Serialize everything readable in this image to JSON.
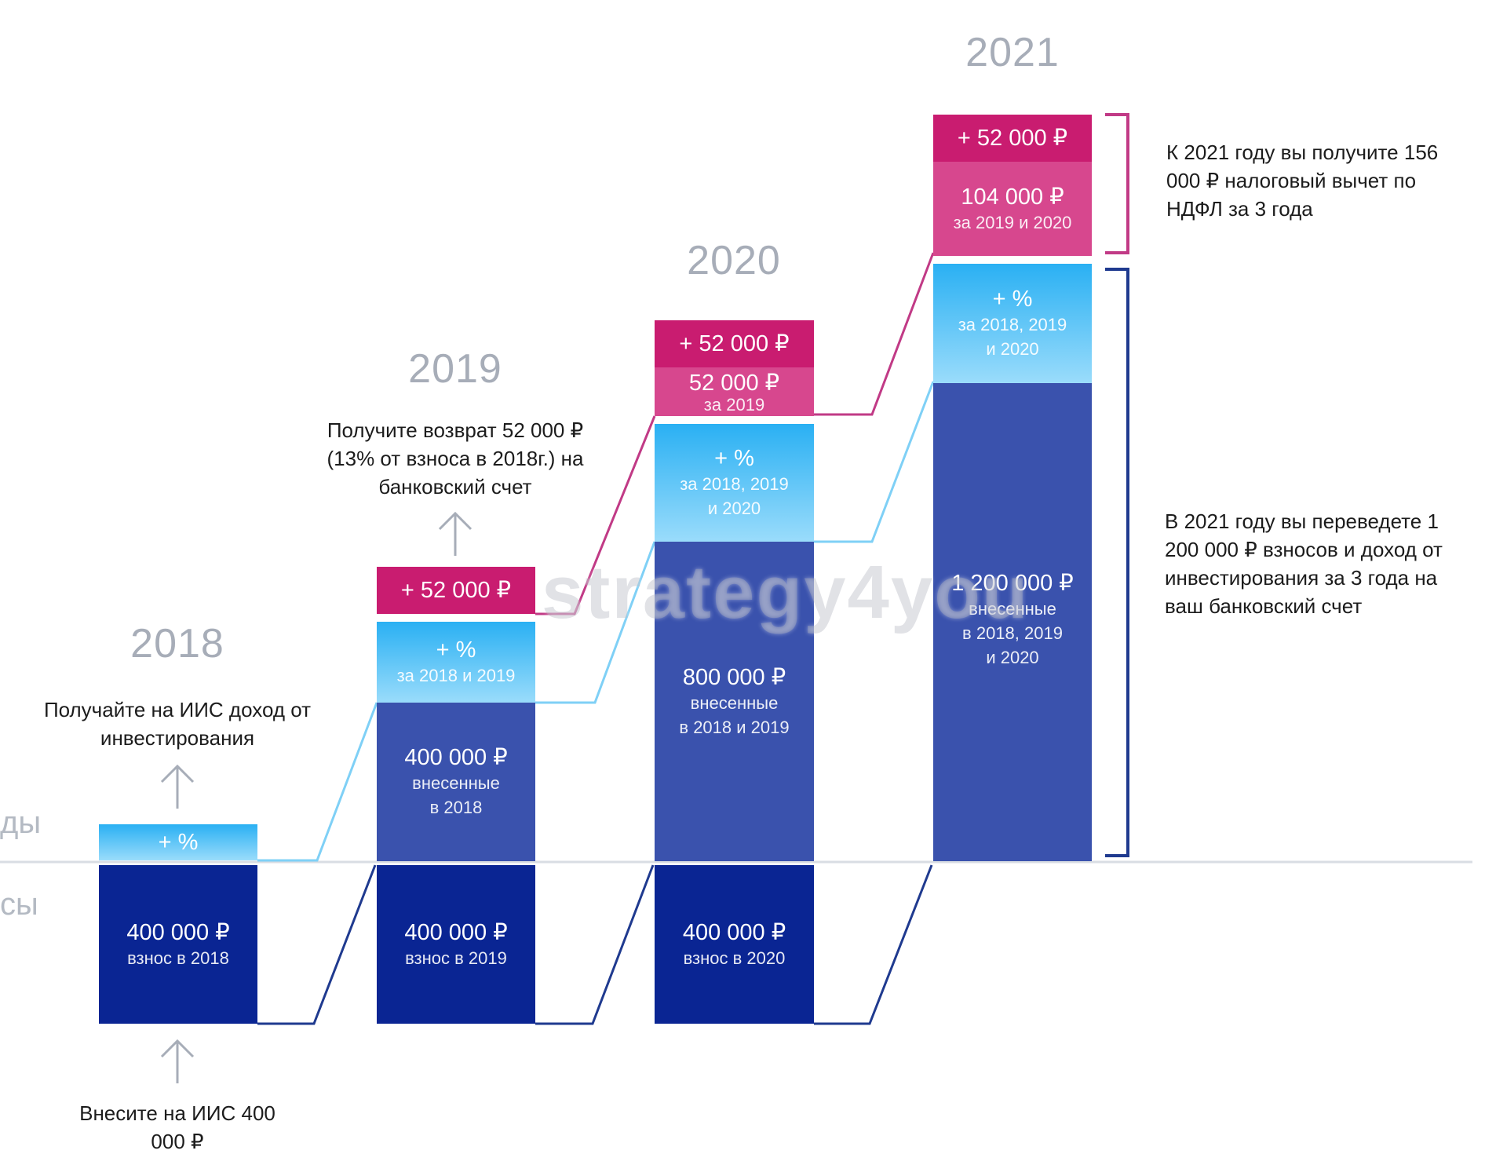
{
  "years": {
    "y2018": "2018",
    "y2019": "2019",
    "y2020": "2020",
    "y2021": "2021"
  },
  "side_labels": {
    "incomes": "ды",
    "contributions": "сы"
  },
  "notes": {
    "income_2018": "Получайте на ИИС доход от инвестирования",
    "refund_2019": "Получите возврат 52 000 ₽ (13% от взноса в 2018г.) на банковский счет",
    "deposit_2018": "Внесите на ИИС 400 000 ₽",
    "tax_total_2021": "К 2021 году вы получите 156 000 ₽ налоговый вычет по НДФЛ за 3 года",
    "transfer_2021": "В 2021 году вы переведете 1 200 000 ₽ взносов и доход от инвестирования за 3 года на ваш банковский счет"
  },
  "blocks": {
    "c2018": {
      "deposit_amount": "400 000 ₽",
      "deposit_label": "взнос в 2018",
      "pct": "+ %"
    },
    "c2019": {
      "deposit_amount": "400 000 ₽",
      "deposit_label": "взнос в 2019",
      "accum_amount": "400 000 ₽",
      "accum_label1": "внесенные",
      "accum_label2": "в 2018",
      "pct": "+ %",
      "pct_label": "за 2018 и 2019",
      "tax_new": "+ 52 000 ₽"
    },
    "c2020": {
      "deposit_amount": "400 000 ₽",
      "deposit_label": "взнос в 2020",
      "accum_amount": "800 000 ₽",
      "accum_label1": "внесенные",
      "accum_label2": "в 2018 и 2019",
      "pct": "+ %",
      "pct_label1": "за 2018, 2019",
      "pct_label2": "и 2020",
      "tax_prev_amount": "52 000 ₽",
      "tax_prev_label": "за 2019",
      "tax_new": "+ 52 000 ₽"
    },
    "c2021": {
      "accum_amount": "1 200 000 ₽",
      "accum_label1": "внесенные",
      "accum_label2": "в 2018, 2019",
      "accum_label3": "и 2020",
      "pct": "+ %",
      "pct_label1": "за 2018, 2019",
      "pct_label2": "и 2020",
      "tax_prev_amount": "104 000 ₽",
      "tax_prev_label": "за 2019 и 2020",
      "tax_new": "+ 52 000 ₽"
    }
  },
  "watermark": "strategy4you",
  "colors": {
    "deposit": "#0a2593",
    "accumulated": "#3a52ad",
    "interest_top": "#2ab0f3",
    "interest_bottom": "#9adcfb",
    "tax_new": "#c91c70",
    "tax_prev": "#d7478e",
    "year_text": "#a7adb8",
    "connector_dark": "#1f3a8f",
    "connector_light": "#7fd0f6",
    "connector_pink": "#c13a86",
    "baseline": "#d9dde3"
  }
}
